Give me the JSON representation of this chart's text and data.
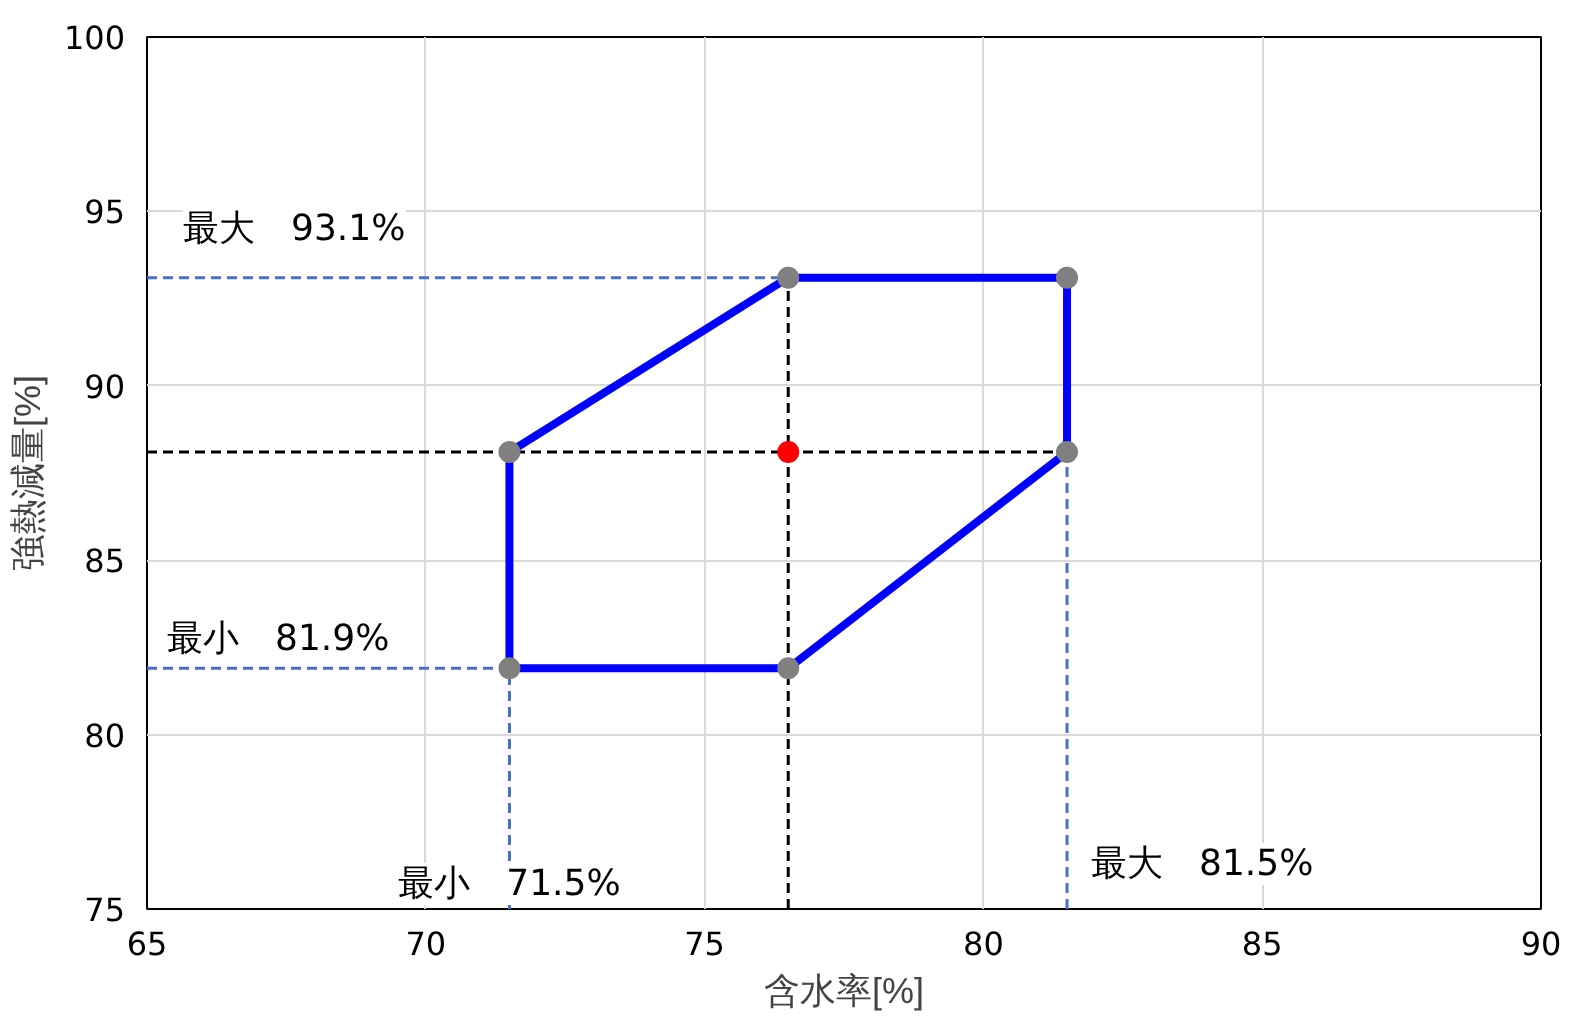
{
  "chart_data": {
    "type": "line",
    "xlabel": "含水率[%]",
    "ylabel": "強熱減量[%]",
    "xlim": [
      65,
      90
    ],
    "xticks": [
      65,
      70,
      75,
      80,
      85,
      90
    ],
    "ylim": [
      75,
      100
    ],
    "yticks": [
      75,
      80,
      85,
      90,
      95,
      100
    ],
    "grid": true,
    "series": [
      {
        "color": "#4472c4",
        "line_style": "dashed",
        "x": [
          65,
          76.5
        ],
        "values": [
          93.1,
          93.1
        ]
      },
      {
        "color": "#4472c4",
        "line_style": "dashed",
        "x": [
          65,
          71.5
        ],
        "values": [
          81.9,
          81.9
        ]
      },
      {
        "color": "#4472c4",
        "line_style": "dashed",
        "x": [
          71.5,
          71.5
        ],
        "values": [
          75,
          81.9
        ]
      },
      {
        "color": "#4472c4",
        "line_style": "dashed",
        "x": [
          81.5,
          81.5
        ],
        "values": [
          75,
          88.1
        ]
      },
      {
        "color": "#000000",
        "line_style": "dashed",
        "x": [
          65,
          81.5
        ],
        "values": [
          88.1,
          88.1
        ]
      },
      {
        "color": "#000000",
        "line_style": "dashed",
        "x": [
          76.5,
          76.5
        ],
        "values": [
          75,
          93.1
        ]
      },
      {
        "color": "#0000ff",
        "line_style": "solid",
        "x": [
          71.5,
          76.5,
          81.5,
          81.5
        ],
        "values": [
          88.1,
          93.1,
          93.1,
          88.1
        ]
      },
      {
        "color": "#0000ff",
        "line_style": "solid",
        "x": [
          71.5,
          71.5,
          76.5,
          81.5
        ],
        "values": [
          88.1,
          81.9,
          81.9,
          88.1
        ]
      },
      {
        "type": "scatter",
        "color": "#808080",
        "marker": "circle",
        "x": [
          71.5,
          76.5,
          81.5,
          81.5,
          76.5,
          71.5
        ],
        "values": [
          88.1,
          93.1,
          93.1,
          88.1,
          81.9,
          81.9
        ]
      },
      {
        "type": "scatter",
        "color": "#ff0000",
        "marker": "circle",
        "x": [
          76.5
        ],
        "values": [
          88.1
        ]
      }
    ],
    "annotations": [
      {
        "text": "最大　93.1%",
        "x": 65,
        "y": 93.1
      },
      {
        "text": "最小　81.9%",
        "x": 65,
        "y": 81.9
      },
      {
        "text": "最小　71.5%",
        "x": 71.5,
        "y": 75
      },
      {
        "text": "最大　81.5%",
        "x": 81.5,
        "y": 75
      }
    ]
  }
}
